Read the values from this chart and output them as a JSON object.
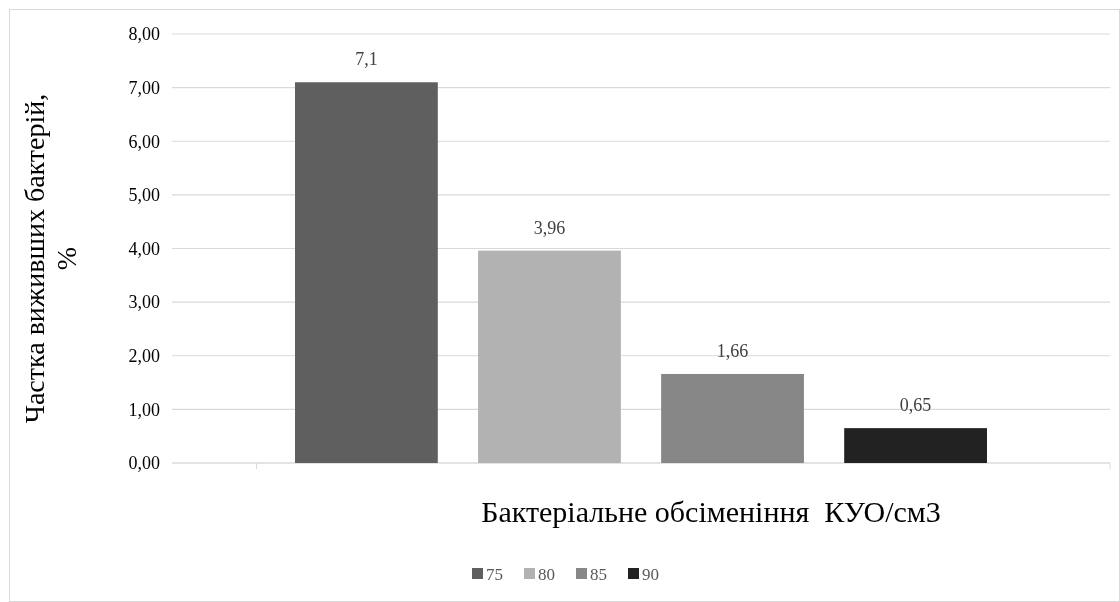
{
  "chart_data": {
    "type": "bar",
    "xlabel": "Бактеріальне обсіменіння  КУО/см3",
    "ylabel": "Частка виживших бактерій, %",
    "categories": [
      null
    ],
    "series": [
      {
        "name": "75",
        "color": "#5f5f5f",
        "values": [
          7.1
        ],
        "value_labels": [
          "7,1"
        ]
      },
      {
        "name": "80",
        "color": "#b2b2b2",
        "values": [
          3.96
        ],
        "value_labels": [
          "3,96"
        ]
      },
      {
        "name": "85",
        "color": "#878787",
        "values": [
          1.66
        ],
        "value_labels": [
          "1,66"
        ]
      },
      {
        "name": "90",
        "color": "#222222",
        "values": [
          0.65
        ],
        "value_labels": [
          "0,65"
        ]
      }
    ],
    "ylim": [
      0,
      8
    ],
    "yticks": [
      {
        "value": 0,
        "label": "0,00"
      },
      {
        "value": 1,
        "label": "1,00"
      },
      {
        "value": 2,
        "label": "2,00"
      },
      {
        "value": 3,
        "label": "3,00"
      },
      {
        "value": 4,
        "label": "4,00"
      },
      {
        "value": 5,
        "label": "5,00"
      },
      {
        "value": 6,
        "label": "6,00"
      },
      {
        "value": 7,
        "label": "7,00"
      },
      {
        "value": 8,
        "label": "8,00"
      }
    ],
    "grid": "y",
    "legend": "bottom"
  }
}
